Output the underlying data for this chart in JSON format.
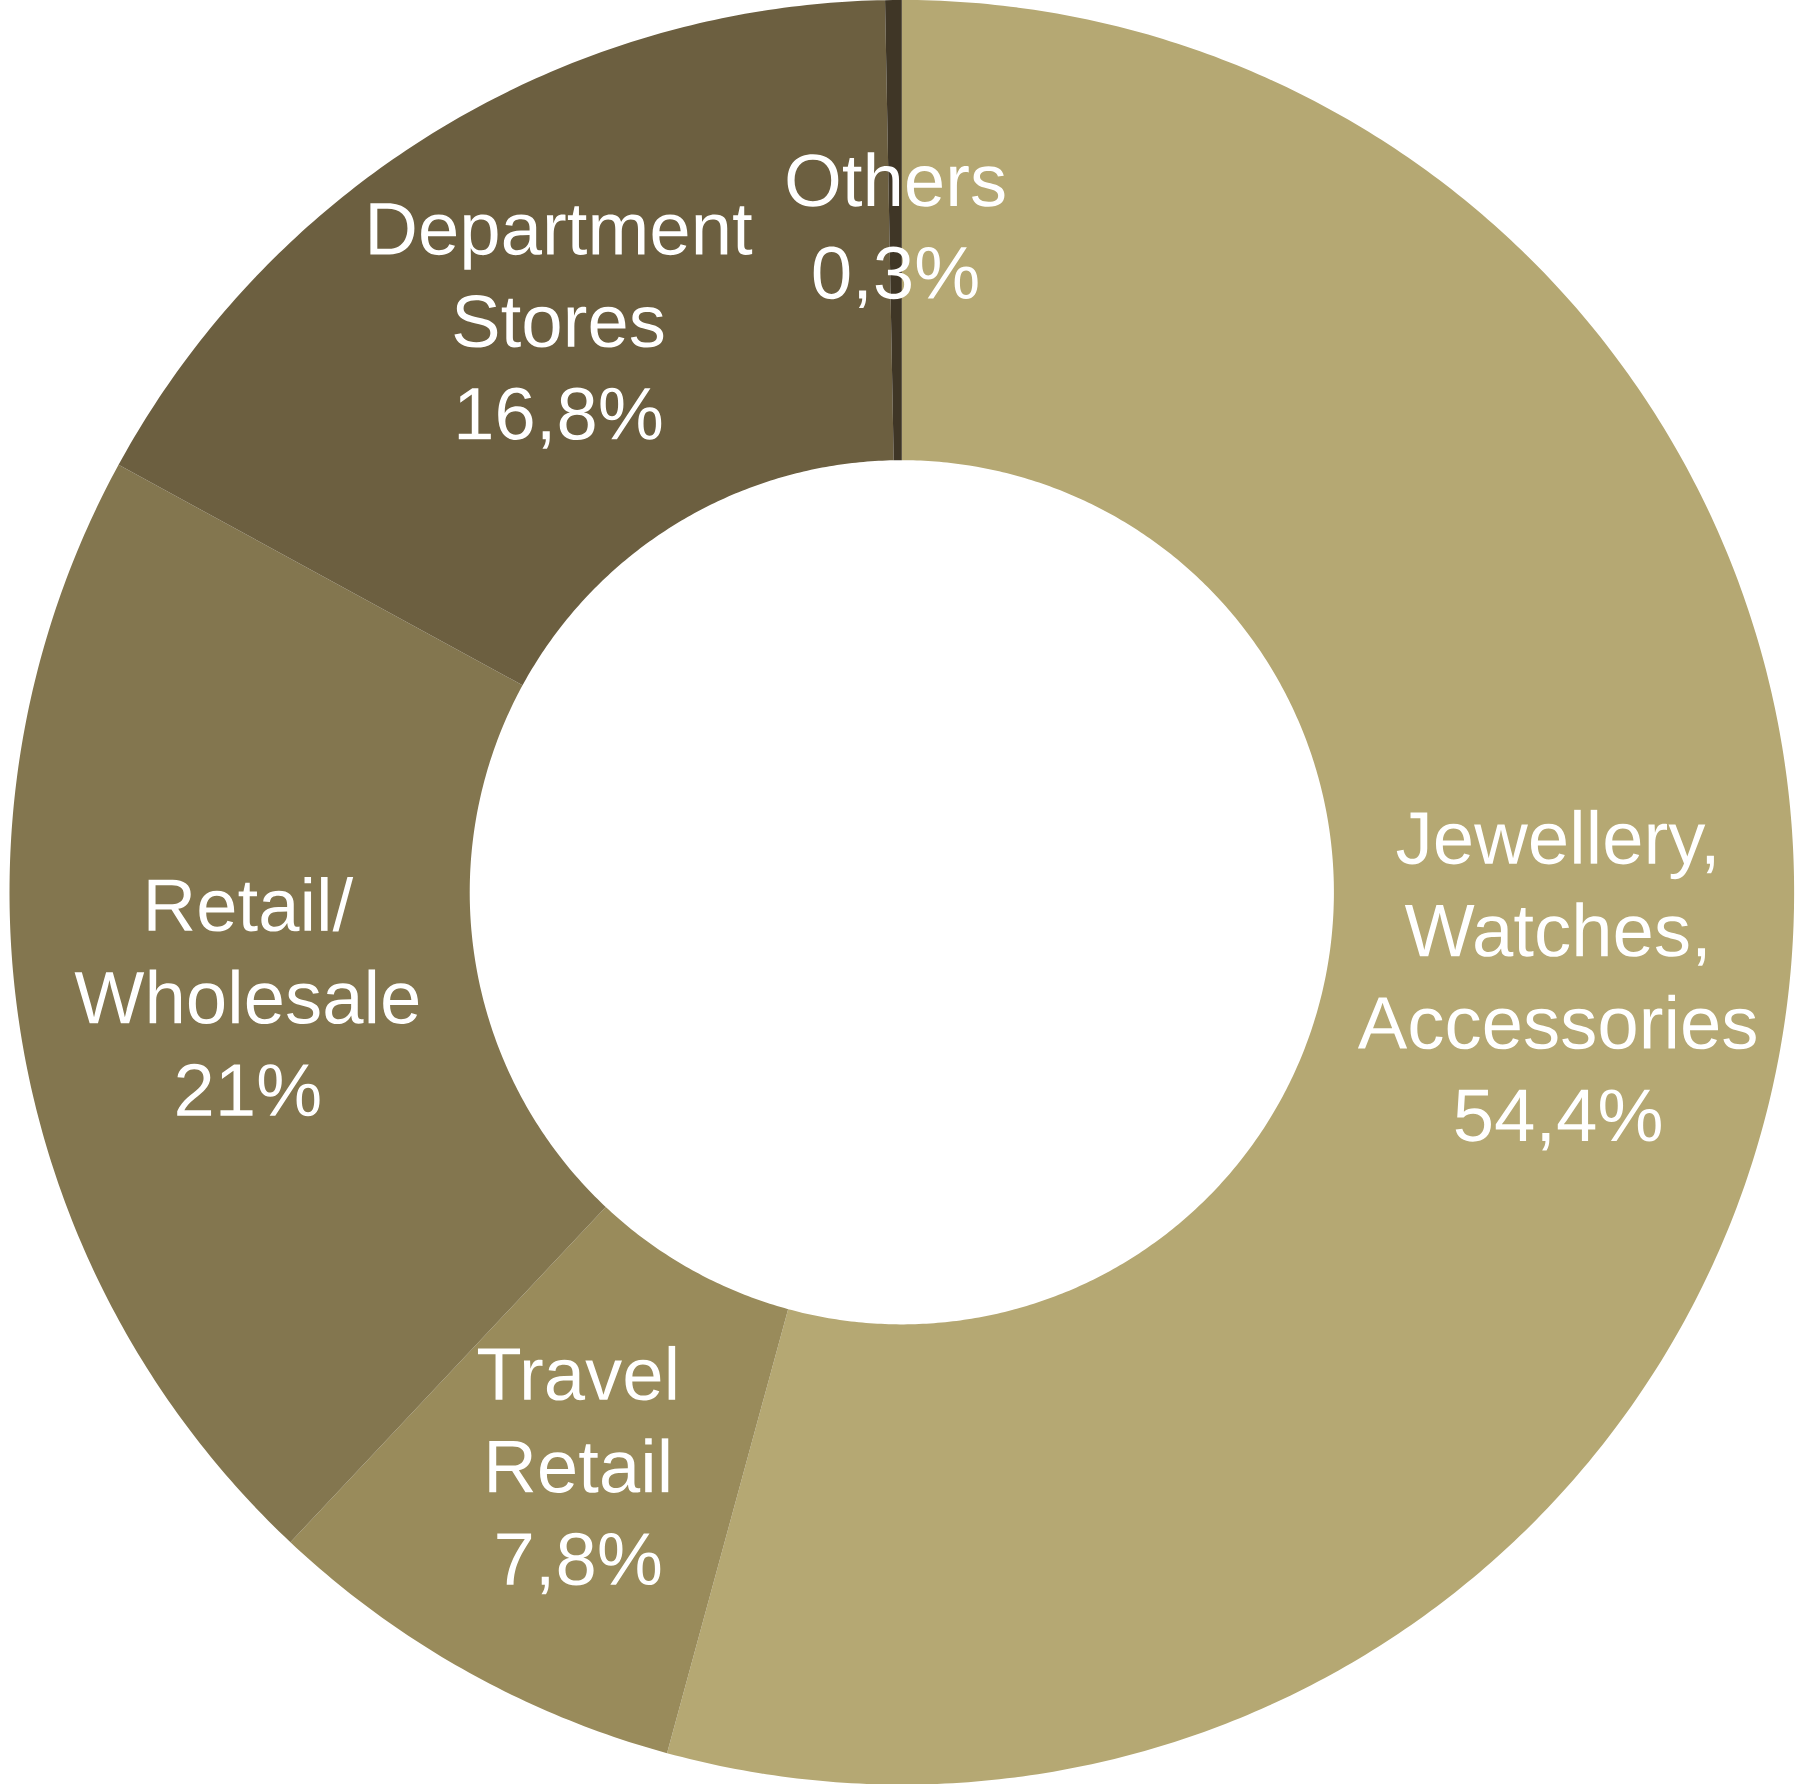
{
  "chart_data": {
    "type": "donut",
    "categories": [
      "Jewellery, Watches, Accessories",
      "Travel Retail",
      "Retail/ Wholesale",
      "Department Stores",
      "Others"
    ],
    "values": [
      54.4,
      7.8,
      21,
      16.8,
      0.3
    ],
    "colors": [
      "#b5a873",
      "#998b5b",
      "#83764f",
      "#6c5f40",
      "#3f3626"
    ],
    "value_labels": [
      "54,4%",
      "7,8%",
      "21%",
      "16,8%",
      "0,3%"
    ]
  }
}
